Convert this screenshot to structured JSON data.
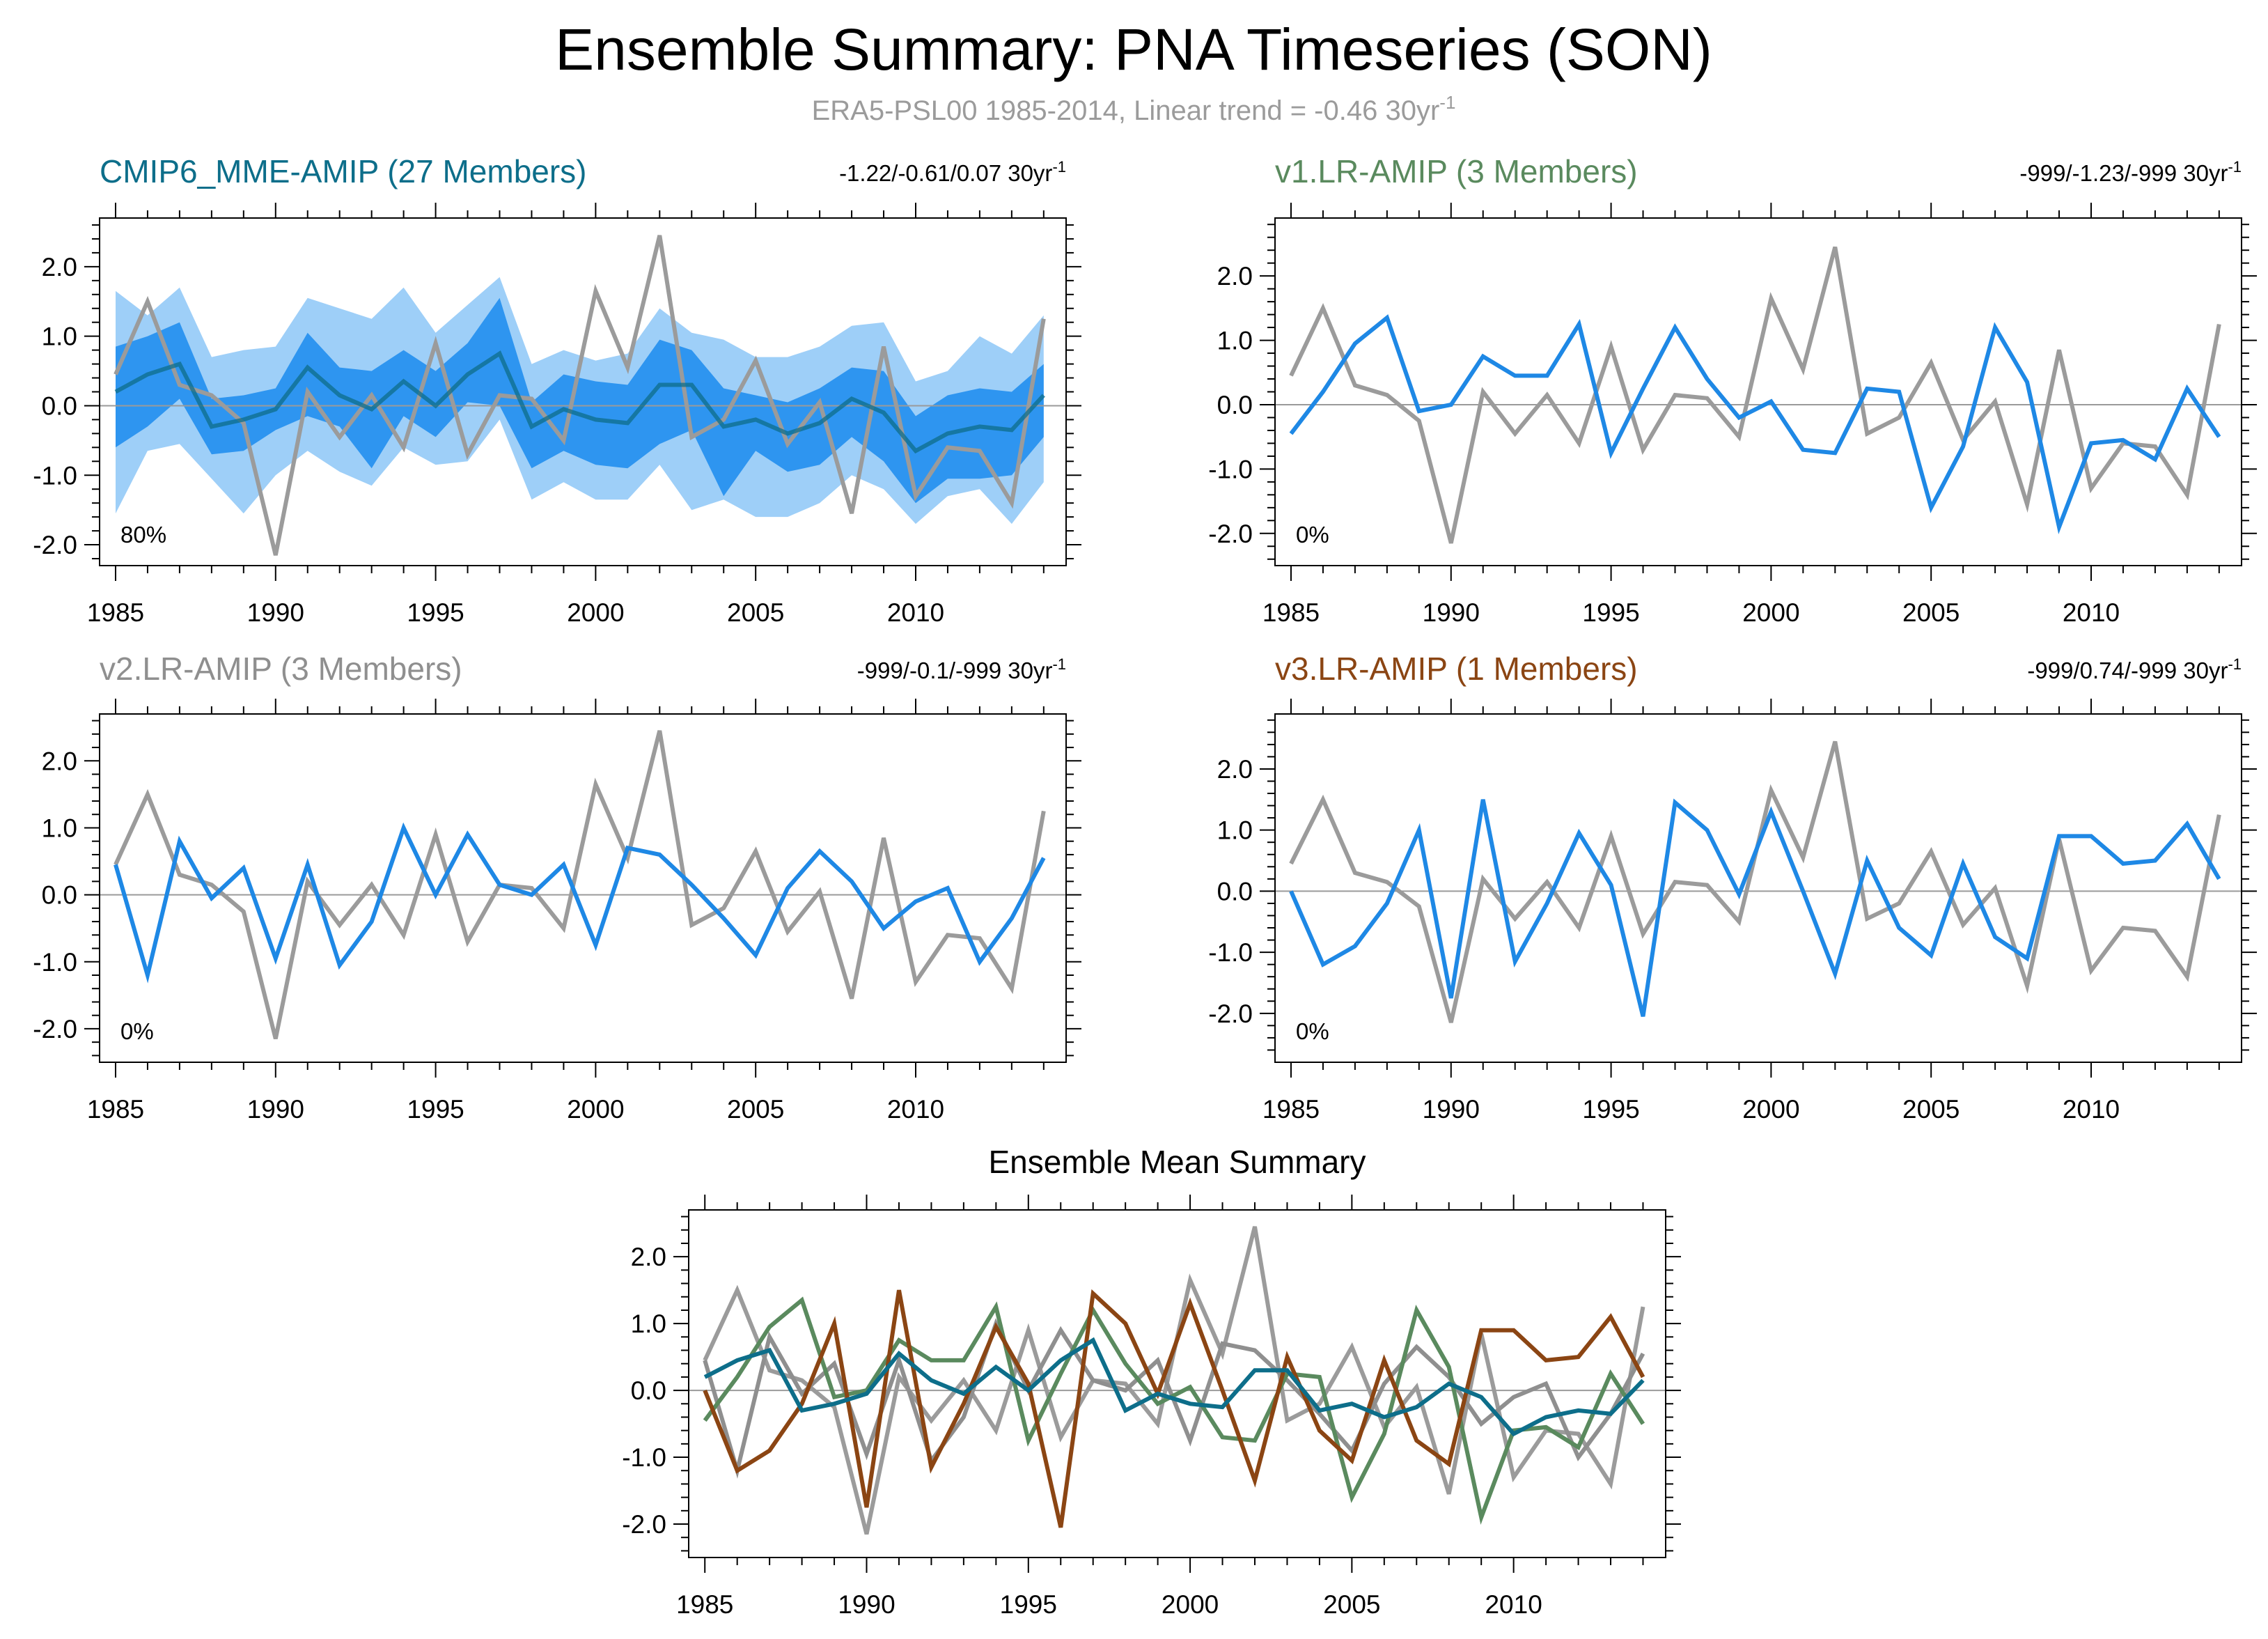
{
  "title": "Ensemble Summary: PNA Timeseries (SON)",
  "subtitle": "ERA5-PSL00 1985-2014, Linear trend = -0.46 30yr",
  "subtitle_sup": "-1",
  "colors": {
    "observed": "#9b9b9b",
    "model": "#1e88e5",
    "band_outer": "#9ecff8",
    "band_inner": "#2e95f0",
    "mme_mean": "#0d6e8a",
    "cmip6": "#0d6e8a",
    "v1": "#5a8a5e",
    "v2": "#8f8f8f",
    "v3": "#8b4513"
  },
  "chart_data": [
    {
      "id": "cmip6",
      "type": "line",
      "title": "CMIP6_MME-AMIP (27 Members)",
      "title_color": "#0d6e8a",
      "trend_text": "-1.22/-0.61/0.07 30yr",
      "trend_sup": "-1",
      "percent_text": "80%",
      "x": [
        1985,
        1986,
        1987,
        1988,
        1989,
        1990,
        1991,
        1992,
        1993,
        1994,
        1995,
        1996,
        1997,
        1998,
        1999,
        2000,
        2001,
        2002,
        2003,
        2004,
        2005,
        2006,
        2007,
        2008,
        2009,
        2010,
        2011,
        2012,
        2013,
        2014
      ],
      "xticks": [
        1985,
        1990,
        1995,
        2000,
        2005,
        2010
      ],
      "yticks": [
        -2.0,
        -1.0,
        0.0,
        1.0,
        2.0
      ],
      "ytick_labels": [
        "-2.0",
        "-1.0",
        "0.0",
        "1.0",
        "2.0"
      ],
      "ylim": [
        -2.3,
        2.7
      ],
      "observed": [
        0.45,
        1.5,
        0.3,
        0.15,
        -0.25,
        -2.15,
        0.2,
        -0.45,
        0.15,
        -0.6,
        0.9,
        -0.7,
        0.15,
        0.1,
        -0.5,
        1.65,
        0.55,
        2.45,
        -0.45,
        -0.2,
        0.65,
        -0.55,
        0.05,
        -1.55,
        0.85,
        -1.3,
        -0.6,
        -0.65,
        -1.4,
        1.25
      ],
      "ensemble_mean": [
        0.2,
        0.45,
        0.6,
        -0.3,
        -0.2,
        -0.05,
        0.55,
        0.15,
        -0.05,
        0.35,
        0.0,
        0.45,
        0.75,
        -0.3,
        -0.05,
        -0.2,
        -0.25,
        0.3,
        0.3,
        -0.3,
        -0.2,
        -0.4,
        -0.25,
        0.1,
        -0.1,
        -0.65,
        -0.4,
        -0.3,
        -0.35,
        0.15
      ],
      "p10": [
        -1.55,
        -0.65,
        -0.55,
        -1.05,
        -1.55,
        -1.0,
        -0.65,
        -0.95,
        -1.15,
        -0.6,
        -0.85,
        -0.8,
        -0.2,
        -1.35,
        -1.1,
        -1.35,
        -1.35,
        -0.85,
        -1.5,
        -1.35,
        -1.6,
        -1.6,
        -1.4,
        -1.0,
        -1.2,
        -1.7,
        -1.3,
        -1.2,
        -1.7,
        -1.1
      ],
      "p25": [
        -0.6,
        -0.3,
        0.1,
        -0.7,
        -0.65,
        -0.35,
        -0.15,
        -0.3,
        -0.9,
        -0.15,
        -0.45,
        0.05,
        0.0,
        -0.9,
        -0.65,
        -0.85,
        -0.9,
        -0.55,
        -0.35,
        -1.3,
        -0.65,
        -0.95,
        -0.85,
        -0.45,
        -0.8,
        -1.4,
        -1.05,
        -1.05,
        -1.0,
        -0.45
      ],
      "p75": [
        0.85,
        1.0,
        1.2,
        0.1,
        0.15,
        0.25,
        1.05,
        0.55,
        0.5,
        0.8,
        0.5,
        0.9,
        1.55,
        0.05,
        0.45,
        0.35,
        0.3,
        0.95,
        0.8,
        0.25,
        0.15,
        0.05,
        0.25,
        0.55,
        0.5,
        -0.15,
        0.15,
        0.25,
        0.2,
        0.6
      ],
      "p90": [
        1.65,
        1.3,
        1.7,
        0.7,
        0.8,
        0.85,
        1.55,
        1.4,
        1.25,
        1.7,
        1.05,
        1.45,
        1.85,
        0.6,
        0.8,
        0.65,
        0.75,
        1.4,
        1.05,
        0.95,
        0.7,
        0.7,
        0.85,
        1.15,
        1.2,
        0.35,
        0.5,
        1.0,
        0.75,
        1.3
      ]
    },
    {
      "id": "v1",
      "type": "line",
      "title": "v1.LR-AMIP (3 Members)",
      "title_color": "#5a8a5e",
      "trend_text": "-999/-1.23/-999 30yr",
      "trend_sup": "-1",
      "percent_text": "0%",
      "x": [
        1985,
        1986,
        1987,
        1988,
        1989,
        1990,
        1991,
        1992,
        1993,
        1994,
        1995,
        1996,
        1997,
        1998,
        1999,
        2000,
        2001,
        2002,
        2003,
        2004,
        2005,
        2006,
        2007,
        2008,
        2009,
        2010,
        2011,
        2012,
        2013,
        2014
      ],
      "xticks": [
        1985,
        1990,
        1995,
        2000,
        2005,
        2010
      ],
      "yticks": [
        -2.0,
        -1.0,
        0.0,
        1.0,
        2.0
      ],
      "ytick_labels": [
        "-2.0",
        "-1.0",
        "0.0",
        "1.0",
        "2.0"
      ],
      "ylim": [
        -2.5,
        2.9
      ],
      "observed": [
        0.45,
        1.5,
        0.3,
        0.15,
        -0.25,
        -2.15,
        0.2,
        -0.45,
        0.15,
        -0.6,
        0.9,
        -0.7,
        0.15,
        0.1,
        -0.5,
        1.65,
        0.55,
        2.45,
        -0.45,
        -0.2,
        0.65,
        -0.55,
        0.05,
        -1.55,
        0.85,
        -1.3,
        -0.6,
        -0.65,
        -1.4,
        1.25
      ],
      "model": [
        -0.45,
        0.2,
        0.95,
        1.35,
        -0.1,
        0.0,
        0.75,
        0.45,
        0.45,
        1.25,
        -0.75,
        0.25,
        1.2,
        0.4,
        -0.2,
        0.05,
        -0.7,
        -0.75,
        0.25,
        0.2,
        -1.6,
        -0.65,
        1.2,
        0.35,
        -1.9,
        -0.6,
        -0.55,
        -0.85,
        0.25,
        -0.5
      ]
    },
    {
      "id": "v2",
      "type": "line",
      "title": "v2.LR-AMIP (3 Members)",
      "title_color": "#8f8f8f",
      "trend_text": "-999/-0.1/-999 30yr",
      "trend_sup": "-1",
      "percent_text": "0%",
      "x": [
        1985,
        1986,
        1987,
        1988,
        1989,
        1990,
        1991,
        1992,
        1993,
        1994,
        1995,
        1996,
        1997,
        1998,
        1999,
        2000,
        2001,
        2002,
        2003,
        2004,
        2005,
        2006,
        2007,
        2008,
        2009,
        2010,
        2011,
        2012,
        2013,
        2014
      ],
      "xticks": [
        1985,
        1990,
        1995,
        2000,
        2005,
        2010
      ],
      "yticks": [
        -2.0,
        -1.0,
        0.0,
        1.0,
        2.0
      ],
      "ytick_labels": [
        "-2.0",
        "-1.0",
        "0.0",
        "1.0",
        "2.0"
      ],
      "ylim": [
        -2.5,
        2.7
      ],
      "observed": [
        0.45,
        1.5,
        0.3,
        0.15,
        -0.25,
        -2.15,
        0.2,
        -0.45,
        0.15,
        -0.6,
        0.9,
        -0.7,
        0.15,
        0.1,
        -0.5,
        1.65,
        0.55,
        2.45,
        -0.45,
        -0.2,
        0.65,
        -0.55,
        0.05,
        -1.55,
        0.85,
        -1.3,
        -0.6,
        -0.65,
        -1.4,
        1.25
      ],
      "model": [
        0.45,
        -1.2,
        0.8,
        -0.05,
        0.4,
        -0.95,
        0.45,
        -1.05,
        -0.4,
        1.0,
        0.0,
        0.9,
        0.15,
        0.0,
        0.45,
        -0.75,
        0.7,
        0.6,
        0.15,
        -0.35,
        -0.9,
        0.1,
        0.65,
        0.2,
        -0.5,
        -0.1,
        0.1,
        -1.0,
        -0.35,
        0.55
      ]
    },
    {
      "id": "v3",
      "type": "line",
      "title": "v3.LR-AMIP (1 Members)",
      "title_color": "#8b4513",
      "trend_text": "-999/0.74/-999 30yr",
      "trend_sup": "-1",
      "percent_text": "0%",
      "x": [
        1985,
        1986,
        1987,
        1988,
        1989,
        1990,
        1991,
        1992,
        1993,
        1994,
        1995,
        1996,
        1997,
        1998,
        1999,
        2000,
        2001,
        2002,
        2003,
        2004,
        2005,
        2006,
        2007,
        2008,
        2009,
        2010,
        2011,
        2012,
        2013,
        2014
      ],
      "xticks": [
        1985,
        1990,
        1995,
        2000,
        2005,
        2010
      ],
      "yticks": [
        -2.0,
        -1.0,
        0.0,
        1.0,
        2.0
      ],
      "ytick_labels": [
        "-2.0",
        "-1.0",
        "0.0",
        "1.0",
        "2.0"
      ],
      "ylim": [
        -2.8,
        2.9
      ],
      "observed": [
        0.45,
        1.5,
        0.3,
        0.15,
        -0.25,
        -2.15,
        0.2,
        -0.45,
        0.15,
        -0.6,
        0.9,
        -0.7,
        0.15,
        0.1,
        -0.5,
        1.65,
        0.55,
        2.45,
        -0.45,
        -0.2,
        0.65,
        -0.55,
        0.05,
        -1.55,
        0.85,
        -1.3,
        -0.6,
        -0.65,
        -1.4,
        1.25
      ],
      "model": [
        0.0,
        -1.2,
        -0.9,
        -0.2,
        1.0,
        -1.75,
        1.5,
        -1.15,
        -0.2,
        0.95,
        0.1,
        -2.05,
        1.45,
        1.0,
        -0.05,
        1.3,
        0.0,
        -1.35,
        0.5,
        -0.6,
        -1.05,
        0.45,
        -0.75,
        -1.1,
        0.9,
        0.9,
        0.45,
        0.5,
        1.1,
        0.2
      ]
    },
    {
      "id": "summary",
      "type": "line",
      "title": "Ensemble Mean Summary",
      "x": [
        1985,
        1986,
        1987,
        1988,
        1989,
        1990,
        1991,
        1992,
        1993,
        1994,
        1995,
        1996,
        1997,
        1998,
        1999,
        2000,
        2001,
        2002,
        2003,
        2004,
        2005,
        2006,
        2007,
        2008,
        2009,
        2010,
        2011,
        2012,
        2013,
        2014
      ],
      "xticks": [
        1985,
        1990,
        1995,
        2000,
        2005,
        2010
      ],
      "yticks": [
        -2.0,
        -1.0,
        0.0,
        1.0,
        2.0
      ],
      "ytick_labels": [
        "-2.0",
        "-1.0",
        "0.0",
        "1.0",
        "2.0"
      ],
      "ylim": [
        -2.5,
        2.7
      ],
      "series": [
        {
          "name": "ERA5-PSL00",
          "color": "#9b9b9b",
          "values": [
            0.45,
            1.5,
            0.3,
            0.15,
            -0.25,
            -2.15,
            0.2,
            -0.45,
            0.15,
            -0.6,
            0.9,
            -0.7,
            0.15,
            0.1,
            -0.5,
            1.65,
            0.55,
            2.45,
            -0.45,
            -0.2,
            0.65,
            -0.55,
            0.05,
            -1.55,
            0.85,
            -1.3,
            -0.6,
            -0.65,
            -1.4,
            1.25
          ]
        },
        {
          "name": "v2.LR-AMIP",
          "color": "#8f8f8f",
          "values": [
            0.45,
            -1.2,
            0.8,
            -0.05,
            0.4,
            -0.95,
            0.45,
            -1.05,
            -0.4,
            1.0,
            0.0,
            0.9,
            0.15,
            0.0,
            0.45,
            -0.75,
            0.7,
            0.6,
            0.15,
            -0.35,
            -0.9,
            0.1,
            0.65,
            0.2,
            -0.5,
            -0.1,
            0.1,
            -1.0,
            -0.35,
            0.55
          ]
        },
        {
          "name": "v1.LR-AMIP",
          "color": "#5a8a5e",
          "values": [
            -0.45,
            0.2,
            0.95,
            1.35,
            -0.1,
            0.0,
            0.75,
            0.45,
            0.45,
            1.25,
            -0.75,
            0.25,
            1.2,
            0.4,
            -0.2,
            0.05,
            -0.7,
            -0.75,
            0.25,
            0.2,
            -1.6,
            -0.65,
            1.2,
            0.35,
            -1.9,
            -0.6,
            -0.55,
            -0.85,
            0.25,
            -0.5
          ]
        },
        {
          "name": "v3.LR-AMIP",
          "color": "#8b4513",
          "values": [
            0.0,
            -1.2,
            -0.9,
            -0.2,
            1.0,
            -1.75,
            1.5,
            -1.15,
            -0.2,
            0.95,
            0.1,
            -2.05,
            1.45,
            1.0,
            -0.05,
            1.3,
            0.0,
            -1.35,
            0.5,
            -0.6,
            -1.05,
            0.45,
            -0.75,
            -1.1,
            0.9,
            0.9,
            0.45,
            0.5,
            1.1,
            0.2
          ]
        },
        {
          "name": "CMIP6_MME-AMIP",
          "color": "#0d6e8a",
          "values": [
            0.2,
            0.45,
            0.6,
            -0.3,
            -0.2,
            -0.05,
            0.55,
            0.15,
            -0.05,
            0.35,
            0.0,
            0.45,
            0.75,
            -0.3,
            -0.05,
            -0.2,
            -0.25,
            0.3,
            0.3,
            -0.3,
            -0.2,
            -0.4,
            -0.25,
            0.1,
            -0.1,
            -0.65,
            -0.4,
            -0.3,
            -0.35,
            0.15
          ]
        }
      ]
    }
  ]
}
